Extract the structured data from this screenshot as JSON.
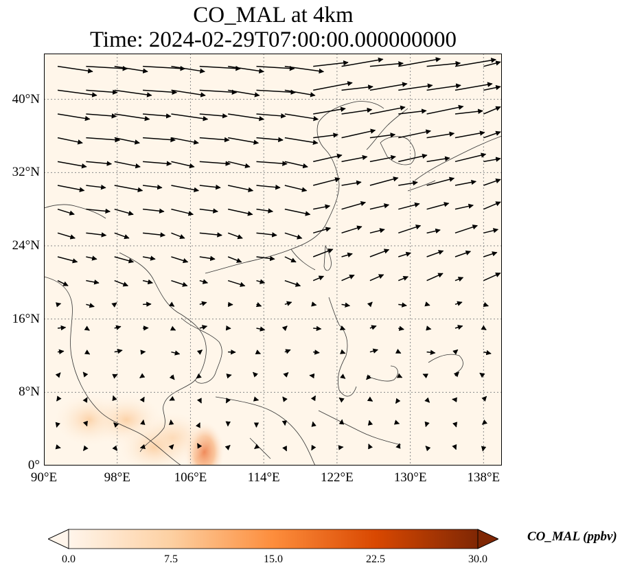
{
  "title_line1": "CO_MAL at 4km",
  "title_line2": "Time: 2024-02-29T07:00:00.000000000",
  "colors": {
    "background": "#fff6ea",
    "coast": "#333333",
    "grid": "#888888",
    "arrow": "#000000",
    "colormap": [
      "#fff5eb",
      "#fdd0a2",
      "#fd8d3c",
      "#d94801",
      "#7f2704"
    ]
  },
  "chart_data": {
    "type": "heatmap",
    "map_projection": "PlateCarree",
    "xlim": [
      90,
      140
    ],
    "ylim": [
      0,
      45
    ],
    "xticks": [
      {
        "value": 90,
        "label": "90°E"
      },
      {
        "value": 98,
        "label": "98°E"
      },
      {
        "value": 106,
        "label": "106°E"
      },
      {
        "value": 114,
        "label": "114°E"
      },
      {
        "value": 122,
        "label": "122°E"
      },
      {
        "value": 130,
        "label": "130°E"
      },
      {
        "value": 138,
        "label": "138°E"
      }
    ],
    "yticks": [
      {
        "value": 0,
        "label": "0°"
      },
      {
        "value": 8,
        "label": "8°N"
      },
      {
        "value": 16,
        "label": "16°N"
      },
      {
        "value": 24,
        "label": "24°N"
      },
      {
        "value": 32,
        "label": "32°N"
      },
      {
        "value": 40,
        "label": "40°N"
      }
    ],
    "grid": true,
    "colorbar": {
      "label": "CO_MAL (ppbv)",
      "min": 0,
      "max": 30,
      "ticks": [
        "0.0",
        "7.5",
        "15.0",
        "22.5",
        "30.0"
      ],
      "extend": "both"
    },
    "field_hotspots": [
      {
        "lon": 107.5,
        "lat": 1.5,
        "value": 14
      },
      {
        "lon": 95,
        "lat": 5,
        "value": 5
      },
      {
        "lon": 99,
        "lat": 5,
        "value": 5
      },
      {
        "lon": 104,
        "lat": 3,
        "value": 6
      },
      {
        "lon": 102,
        "lat": 2,
        "value": 4
      }
    ],
    "wind_vectors_note": "Quiver arrows show wind direction; westerlies north of ~20°N, weak mixed flow in tropics"
  }
}
